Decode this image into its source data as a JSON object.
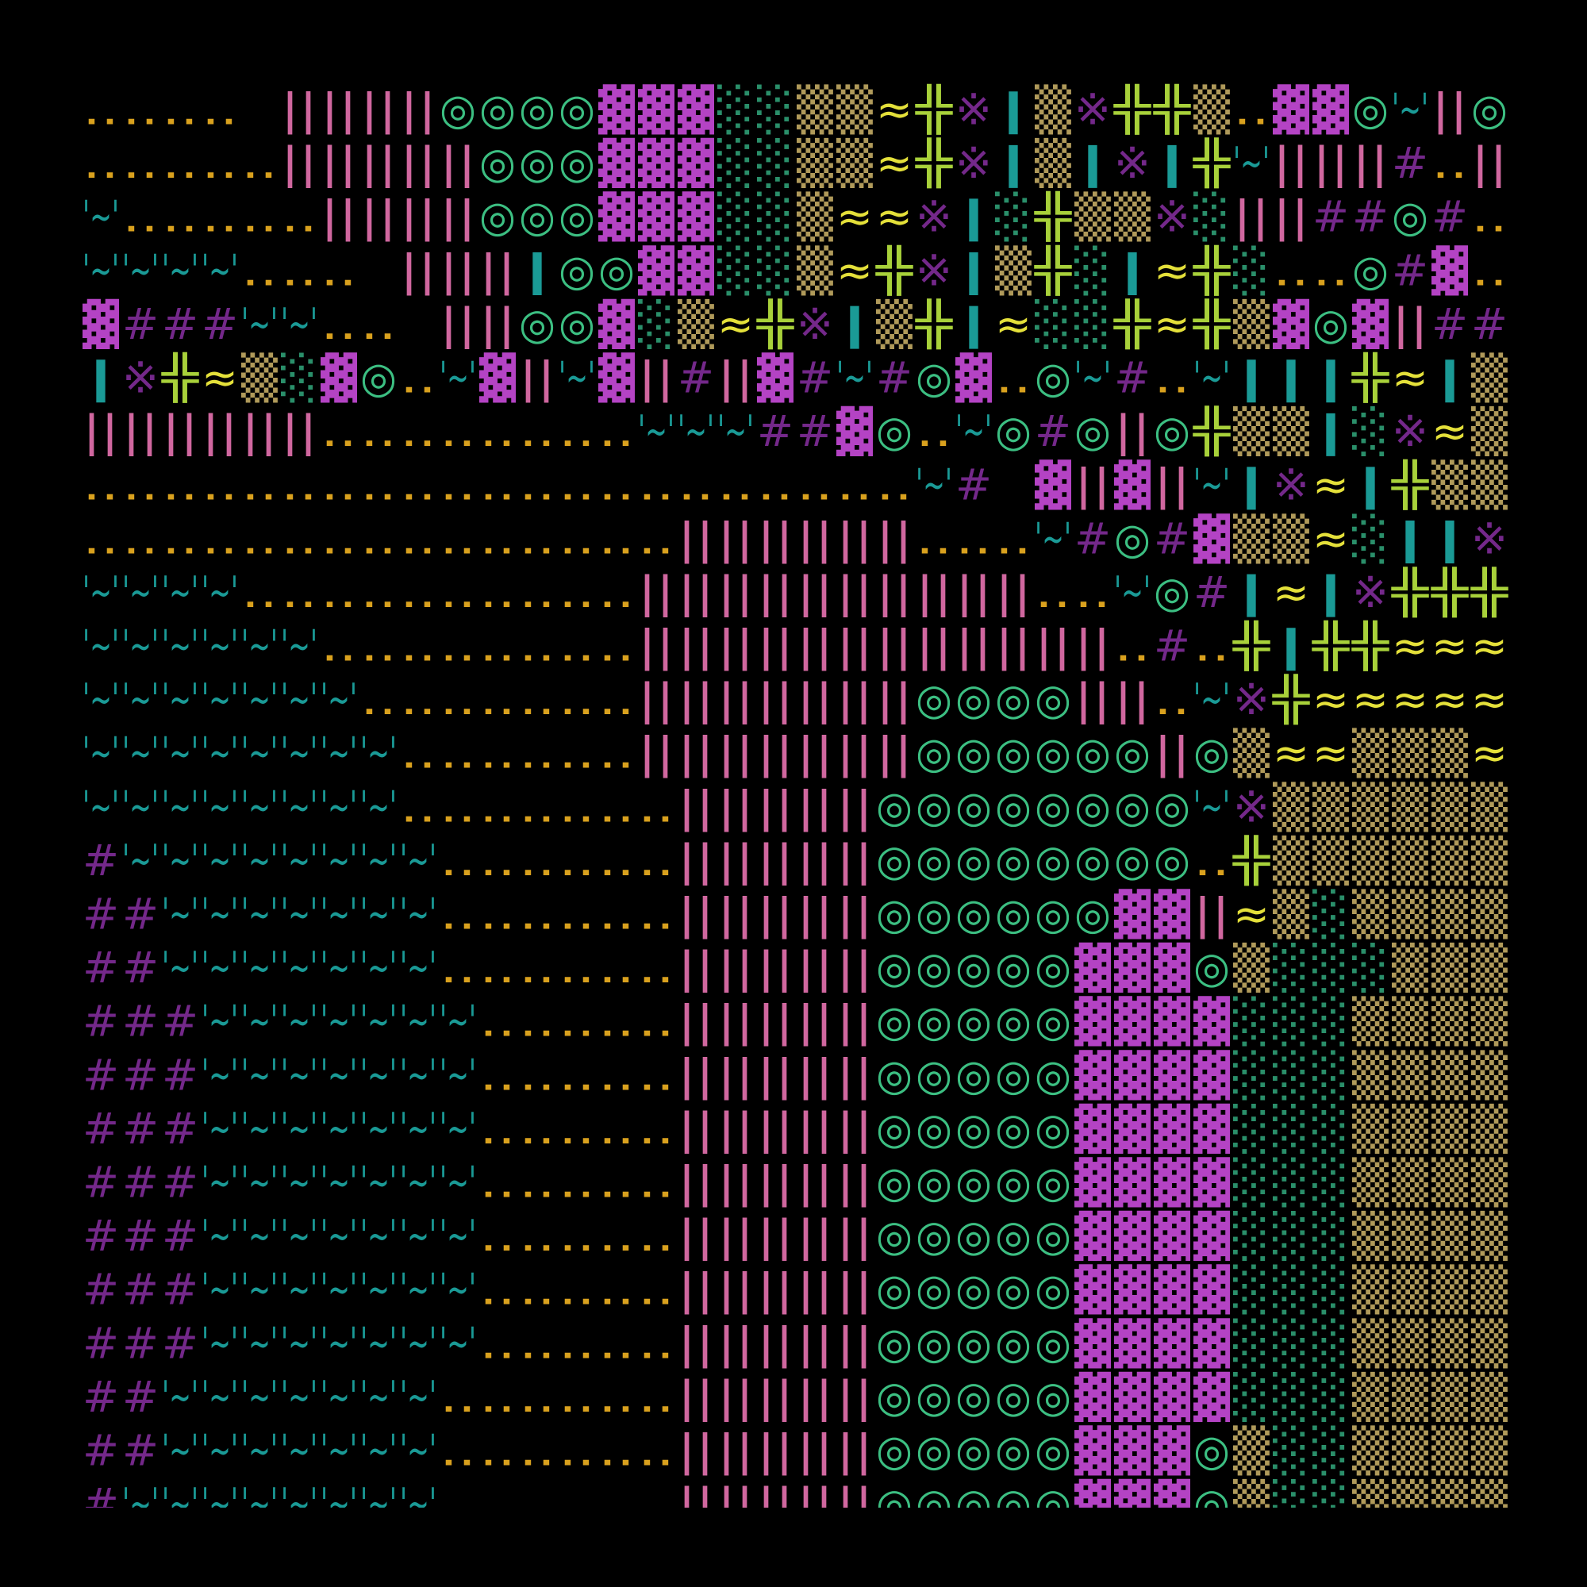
{
  "colors": {
    "..": "#d9a11e",
    "||": "#d0679f",
    "◎": "#3cbf82",
    "▓": "#b443c4",
    "░": "#2a8f6a",
    "▒": "#b09a5a",
    "≈": "#e4e03a",
    "╬": "#a8d13a",
    "※": "#74288a",
    "|": "#1a9a96",
    "'~'": "#1a9a96",
    "#": "#74288a"
  },
  "rows": [
    [
      "..",
      ".."
    ],
    [
      "..",
      "..",
      "..",
      "..",
      null,
      "||",
      "||",
      "||",
      "||",
      "◎",
      "◎",
      "◎",
      "◎",
      "▓",
      "▓",
      "▓",
      "░",
      "░",
      "▒",
      "▒",
      "≈",
      "╬",
      "※",
      "|",
      "▒",
      "※",
      "╬",
      "╬",
      "▒",
      "..",
      "▓",
      "▓",
      "◎",
      "'~'",
      "||",
      "◎"
    ],
    [
      "..",
      "..",
      "..",
      "..",
      "..",
      "||",
      "||",
      "||",
      "||",
      "||",
      "◎",
      "◎",
      "◎",
      "▓",
      "▓",
      "▓",
      "░",
      "░",
      "▒",
      "▒",
      "≈",
      "╬",
      "※",
      "|",
      "▒",
      "|",
      "※",
      "|",
      "╬",
      "'~'",
      "||",
      "||",
      "||",
      "#",
      "..",
      "||"
    ],
    [
      "'~'",
      "..",
      "..",
      "..",
      "..",
      "..",
      "||",
      "||",
      "||",
      "||",
      "◎",
      "◎",
      "◎",
      "▓",
      "▓",
      "▓",
      "░",
      "░",
      "▒",
      "≈",
      "≈",
      "※",
      "|",
      "░",
      "╬",
      "▒",
      "▒",
      "※",
      "░",
      "||",
      "||",
      "#",
      "#",
      "◎",
      "#",
      ".."
    ],
    [
      "'~'",
      "'~'",
      "'~'",
      "'~'",
      "..",
      "..",
      "..",
      null,
      "||",
      "||",
      "||",
      "|",
      "◎",
      "◎",
      "▓",
      "▓",
      "░",
      "░",
      "▒",
      "≈",
      "╬",
      "※",
      "|",
      "▒",
      "╬",
      "░",
      "|",
      "≈",
      "╬",
      "░",
      "..",
      "..",
      "◎",
      "#",
      "▓",
      ".."
    ],
    [
      "▓",
      "#",
      "#",
      "#",
      "'~'",
      "'~'",
      "..",
      "..",
      null,
      "||",
      "||",
      "◎",
      "◎",
      "▓",
      "░",
      "▒",
      "≈",
      "╬",
      "※",
      "|",
      "▒",
      "╬",
      "|",
      "≈",
      "░",
      "░",
      "╬",
      "≈",
      "╬",
      "▒",
      "▓",
      "◎",
      "▓",
      "||",
      "#",
      "#"
    ],
    [
      "|",
      "※",
      "╬",
      "≈",
      "▒",
      "░",
      "▓",
      "◎",
      "..",
      "'~'",
      "▓",
      "||",
      "'~'",
      "▓",
      "||",
      "#",
      "||",
      "▓",
      "#",
      "'~'",
      "#",
      "◎",
      "▓",
      "..",
      "◎",
      "'~'",
      "#",
      "..",
      "'~'",
      "|",
      "|",
      "|",
      "╬",
      "≈",
      "|",
      "▒"
    ],
    [
      "||",
      "||",
      "||",
      "||",
      "||",
      "||",
      "..",
      "..",
      "..",
      "..",
      "..",
      "..",
      "..",
      "..",
      "'~'",
      "'~'",
      "'~'",
      "#",
      "#",
      "▓",
      "◎",
      "..",
      "'~'",
      "◎",
      "#",
      "◎",
      "||",
      "◎",
      "╬",
      "▒",
      "▒",
      "|",
      "░",
      "※",
      "≈",
      "▒"
    ],
    [
      "..",
      "..",
      "..",
      "..",
      "..",
      "..",
      "..",
      "..",
      "..",
      "..",
      "..",
      "..",
      "..",
      "..",
      "..",
      "..",
      "..",
      "..",
      "..",
      "..",
      "..",
      "'~'",
      "#",
      null,
      "▓",
      "||",
      "▓",
      "||",
      "'~'",
      "|",
      "※",
      "≈",
      "|",
      "╬",
      "▒",
      "▒"
    ],
    [
      "..",
      "..",
      "..",
      "..",
      "..",
      "..",
      "..",
      "..",
      "..",
      "..",
      "..",
      "..",
      "..",
      "..",
      "..",
      "||",
      "||",
      "||",
      "||",
      "||",
      "||",
      "..",
      "..",
      "..",
      "'~'",
      "#",
      "◎",
      "#",
      "▓",
      "▒",
      "▒",
      "≈",
      "░",
      "|",
      "|",
      "※"
    ],
    [
      "'~'",
      "'~'",
      "'~'",
      "'~'",
      "..",
      "..",
      "..",
      "..",
      "..",
      "..",
      "..",
      "..",
      "..",
      "..",
      "||",
      "||",
      "||",
      "||",
      "||",
      "||",
      "||",
      "||",
      "||",
      "||",
      "..",
      "..",
      "'~'",
      "◎",
      "#",
      "|",
      "≈",
      "|",
      "※",
      "╬",
      "╬",
      "╬"
    ],
    [
      "'~'",
      "'~'",
      "'~'",
      "'~'",
      "'~'",
      "'~'",
      "..",
      "..",
      "..",
      "..",
      "..",
      "..",
      "..",
      "..",
      "||",
      "||",
      "||",
      "||",
      "||",
      "||",
      "||",
      "||",
      "||",
      "||",
      "||",
      "||",
      "..",
      "#",
      "..",
      "╬",
      "|",
      "╬",
      "╬",
      "≈",
      "≈",
      "≈"
    ],
    [
      "'~'",
      "'~'",
      "'~'",
      "'~'",
      "'~'",
      "'~'",
      "'~'",
      "..",
      "..",
      "..",
      "..",
      "..",
      "..",
      "..",
      "||",
      "||",
      "||",
      "||",
      "||",
      "||",
      "||",
      "◎",
      "◎",
      "◎",
      "◎",
      "||",
      "||",
      "..",
      "'~'",
      "※",
      "╬",
      "≈",
      "≈",
      "≈",
      "≈",
      "≈"
    ],
    [
      "'~'",
      "'~'",
      "'~'",
      "'~'",
      "'~'",
      "'~'",
      "'~'",
      "'~'",
      "..",
      "..",
      "..",
      "..",
      "..",
      "..",
      "||",
      "||",
      "||",
      "||",
      "||",
      "||",
      "||",
      "◎",
      "◎",
      "◎",
      "◎",
      "◎",
      "◎",
      "||",
      "◎",
      "▒",
      "≈",
      "≈",
      "▒",
      "▒",
      "▒",
      "≈"
    ],
    [
      "'~'",
      "'~'",
      "'~'",
      "'~'",
      "'~'",
      "'~'",
      "'~'",
      "'~'",
      "..",
      "..",
      "..",
      "..",
      "..",
      "..",
      "..",
      "||",
      "||",
      "||",
      "||",
      "||",
      "◎",
      "◎",
      "◎",
      "◎",
      "◎",
      "◎",
      "◎",
      "◎",
      "'~'",
      "※",
      "▒",
      "▒",
      "▒",
      "▒",
      "▒",
      "▒"
    ],
    [
      "#",
      "'~'",
      "'~'",
      "'~'",
      "'~'",
      "'~'",
      "'~'",
      "'~'",
      "'~'",
      "..",
      "..",
      "..",
      "..",
      "..",
      "..",
      "||",
      "||",
      "||",
      "||",
      "||",
      "◎",
      "◎",
      "◎",
      "◎",
      "◎",
      "◎",
      "◎",
      "◎",
      "..",
      "╬",
      "▒",
      "▒",
      "▒",
      "▒",
      "▒",
      "▒"
    ],
    [
      "#",
      "#",
      "'~'",
      "'~'",
      "'~'",
      "'~'",
      "'~'",
      "'~'",
      "'~'",
      "..",
      "..",
      "..",
      "..",
      "..",
      "..",
      "||",
      "||",
      "||",
      "||",
      "||",
      "◎",
      "◎",
      "◎",
      "◎",
      "◎",
      "◎",
      "▓",
      "▓",
      "||",
      "≈",
      "▒",
      "░",
      "▒",
      "▒",
      "▒",
      "▒"
    ],
    [
      "#",
      "#",
      "'~'",
      "'~'",
      "'~'",
      "'~'",
      "'~'",
      "'~'",
      "'~'",
      "..",
      "..",
      "..",
      "..",
      "..",
      "..",
      "||",
      "||",
      "||",
      "||",
      "||",
      "◎",
      "◎",
      "◎",
      "◎",
      "◎",
      "▓",
      "▓",
      "▓",
      "◎",
      "▒",
      "░",
      "░",
      "░",
      "▒",
      "▒",
      "▒"
    ],
    [
      "#",
      "#",
      "#",
      "'~'",
      "'~'",
      "'~'",
      "'~'",
      "'~'",
      "'~'",
      "'~'",
      "..",
      "..",
      "..",
      "..",
      "..",
      "||",
      "||",
      "||",
      "||",
      "||",
      "◎",
      "◎",
      "◎",
      "◎",
      "◎",
      "▓",
      "▓",
      "▓",
      "▓",
      "░",
      "░",
      "░",
      "▒",
      "▒",
      "▒",
      "▒"
    ],
    [
      "#",
      "#",
      "#",
      "'~'",
      "'~'",
      "'~'",
      "'~'",
      "'~'",
      "'~'",
      "'~'",
      "..",
      "..",
      "..",
      "..",
      "..",
      "||",
      "||",
      "||",
      "||",
      "||",
      "◎",
      "◎",
      "◎",
      "◎",
      "◎",
      "▓",
      "▓",
      "▓",
      "▓",
      "░",
      "░",
      "░",
      "▒",
      "▒",
      "▒",
      "▒"
    ],
    [
      "#",
      "#",
      "#",
      "'~'",
      "'~'",
      "'~'",
      "'~'",
      "'~'",
      "'~'",
      "'~'",
      "..",
      "..",
      "..",
      "..",
      "..",
      "||",
      "||",
      "||",
      "||",
      "||",
      "◎",
      "◎",
      "◎",
      "◎",
      "◎",
      "▓",
      "▓",
      "▓",
      "▓",
      "░",
      "░",
      "░",
      "▒",
      "▒",
      "▒",
      "▒"
    ],
    [
      "#",
      "#",
      "#",
      "'~'",
      "'~'",
      "'~'",
      "'~'",
      "'~'",
      "'~'",
      "'~'",
      "..",
      "..",
      "..",
      "..",
      "..",
      "||",
      "||",
      "||",
      "||",
      "||",
      "◎",
      "◎",
      "◎",
      "◎",
      "◎",
      "▓",
      "▓",
      "▓",
      "▓",
      "░",
      "░",
      "░",
      "▒",
      "▒",
      "▒",
      "▒"
    ],
    [
      "#",
      "#",
      "#",
      "'~'",
      "'~'",
      "'~'",
      "'~'",
      "'~'",
      "'~'",
      "'~'",
      "..",
      "..",
      "..",
      "..",
      "..",
      "||",
      "||",
      "||",
      "||",
      "||",
      "◎",
      "◎",
      "◎",
      "◎",
      "◎",
      "▓",
      "▓",
      "▓",
      "▓",
      "░",
      "░",
      "░",
      "▒",
      "▒",
      "▒",
      "▒"
    ],
    [
      "#",
      "#",
      "#",
      "'~'",
      "'~'",
      "'~'",
      "'~'",
      "'~'",
      "'~'",
      "'~'",
      "..",
      "..",
      "..",
      "..",
      "..",
      "||",
      "||",
      "||",
      "||",
      "||",
      "◎",
      "◎",
      "◎",
      "◎",
      "◎",
      "▓",
      "▓",
      "▓",
      "▓",
      "░",
      "░",
      "░",
      "▒",
      "▒",
      "▒",
      "▒"
    ],
    [
      "#",
      "#",
      "#",
      "'~'",
      "'~'",
      "'~'",
      "'~'",
      "'~'",
      "'~'",
      "'~'",
      "..",
      "..",
      "..",
      "..",
      "..",
      "||",
      "||",
      "||",
      "||",
      "||",
      "◎",
      "◎",
      "◎",
      "◎",
      "◎",
      "▓",
      "▓",
      "▓",
      "▓",
      "░",
      "░",
      "░",
      "▒",
      "▒",
      "▒",
      "▒"
    ],
    [
      "#",
      "#",
      "'~'",
      "'~'",
      "'~'",
      "'~'",
      "'~'",
      "'~'",
      "'~'",
      "..",
      "..",
      "..",
      "..",
      "..",
      "..",
      "||",
      "||",
      "||",
      "||",
      "||",
      "◎",
      "◎",
      "◎",
      "◎",
      "◎",
      "▓",
      "▓",
      "▓",
      "▓",
      "░",
      "░",
      "░",
      "▒",
      "▒",
      "▒",
      "▒"
    ],
    [
      "#",
      "#",
      "'~'",
      "'~'",
      "'~'",
      "'~'",
      "'~'",
      "'~'",
      "'~'",
      "..",
      "..",
      "..",
      "..",
      "..",
      "..",
      "||",
      "||",
      "||",
      "||",
      "||",
      "◎",
      "◎",
      "◎",
      "◎",
      "◎",
      "▓",
      "▓",
      "▓",
      "◎",
      "▒",
      "░",
      "░",
      "▒",
      "▒",
      "▒",
      "▒"
    ],
    [
      "#",
      "'~'",
      "'~'",
      "'~'",
      "'~'",
      "'~'",
      "'~'",
      "'~'",
      "'~'",
      null,
      null,
      null,
      null,
      null,
      null,
      "||",
      "||",
      "||",
      "||",
      "||",
      "◎",
      "◎",
      "◎",
      "◎",
      "◎",
      "▓",
      "▓",
      "▓",
      "◎",
      "▒",
      "░",
      "░",
      "▒",
      "▒",
      "▒",
      "▒"
    ]
  ]
}
